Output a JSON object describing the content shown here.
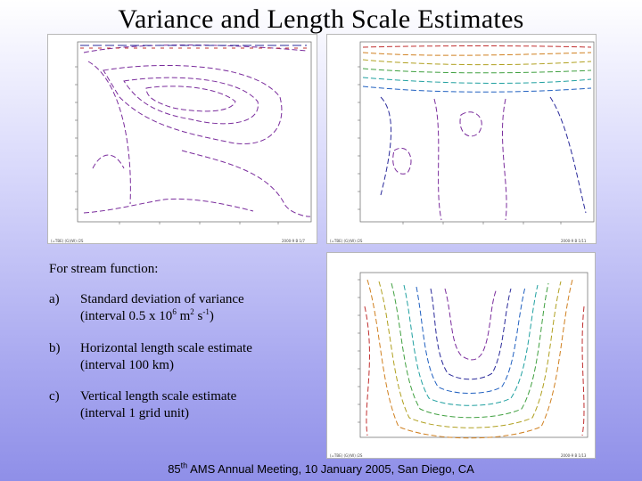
{
  "title": "Variance and Length Scale Estimates",
  "panels": {
    "a": {
      "letter": "a",
      "footer_left": "(=TBE) (G)(W) /2S",
      "footer_right": "2000-9  B  1/7"
    },
    "b": {
      "letter": "b",
      "footer_left": "(=TBE) (G)(W) /2S",
      "footer_right": "2000-9  B  1/11"
    },
    "c": {
      "letter": "c",
      "footer_left": "(=TBE) (G)(W) /2S",
      "footer_right": "2000-9  B  1/13"
    }
  },
  "description": {
    "heading": "For stream function:",
    "items": [
      {
        "key": "a)",
        "line1": "Standard deviation of variance",
        "line2_pre": "(interval 0.5 x 10",
        "line2_sup1": "6",
        "line2_mid": " m",
        "line2_sup2": "2",
        "line2_mid2": " s",
        "line2_sup3": "-1",
        "line2_post": ")"
      },
      {
        "key": "b)",
        "line1": "Horizontal length scale estimate",
        "line2": "(interval 100 km)"
      },
      {
        "key": "c)",
        "line1": "Vertical length scale estimate",
        "line2": "(interval 1 grid unit)"
      }
    ]
  },
  "footer": {
    "sup": "th",
    "number": "85",
    "text": " AMS Annual Meeting, 10 January 2005, San Diego, CA"
  }
}
